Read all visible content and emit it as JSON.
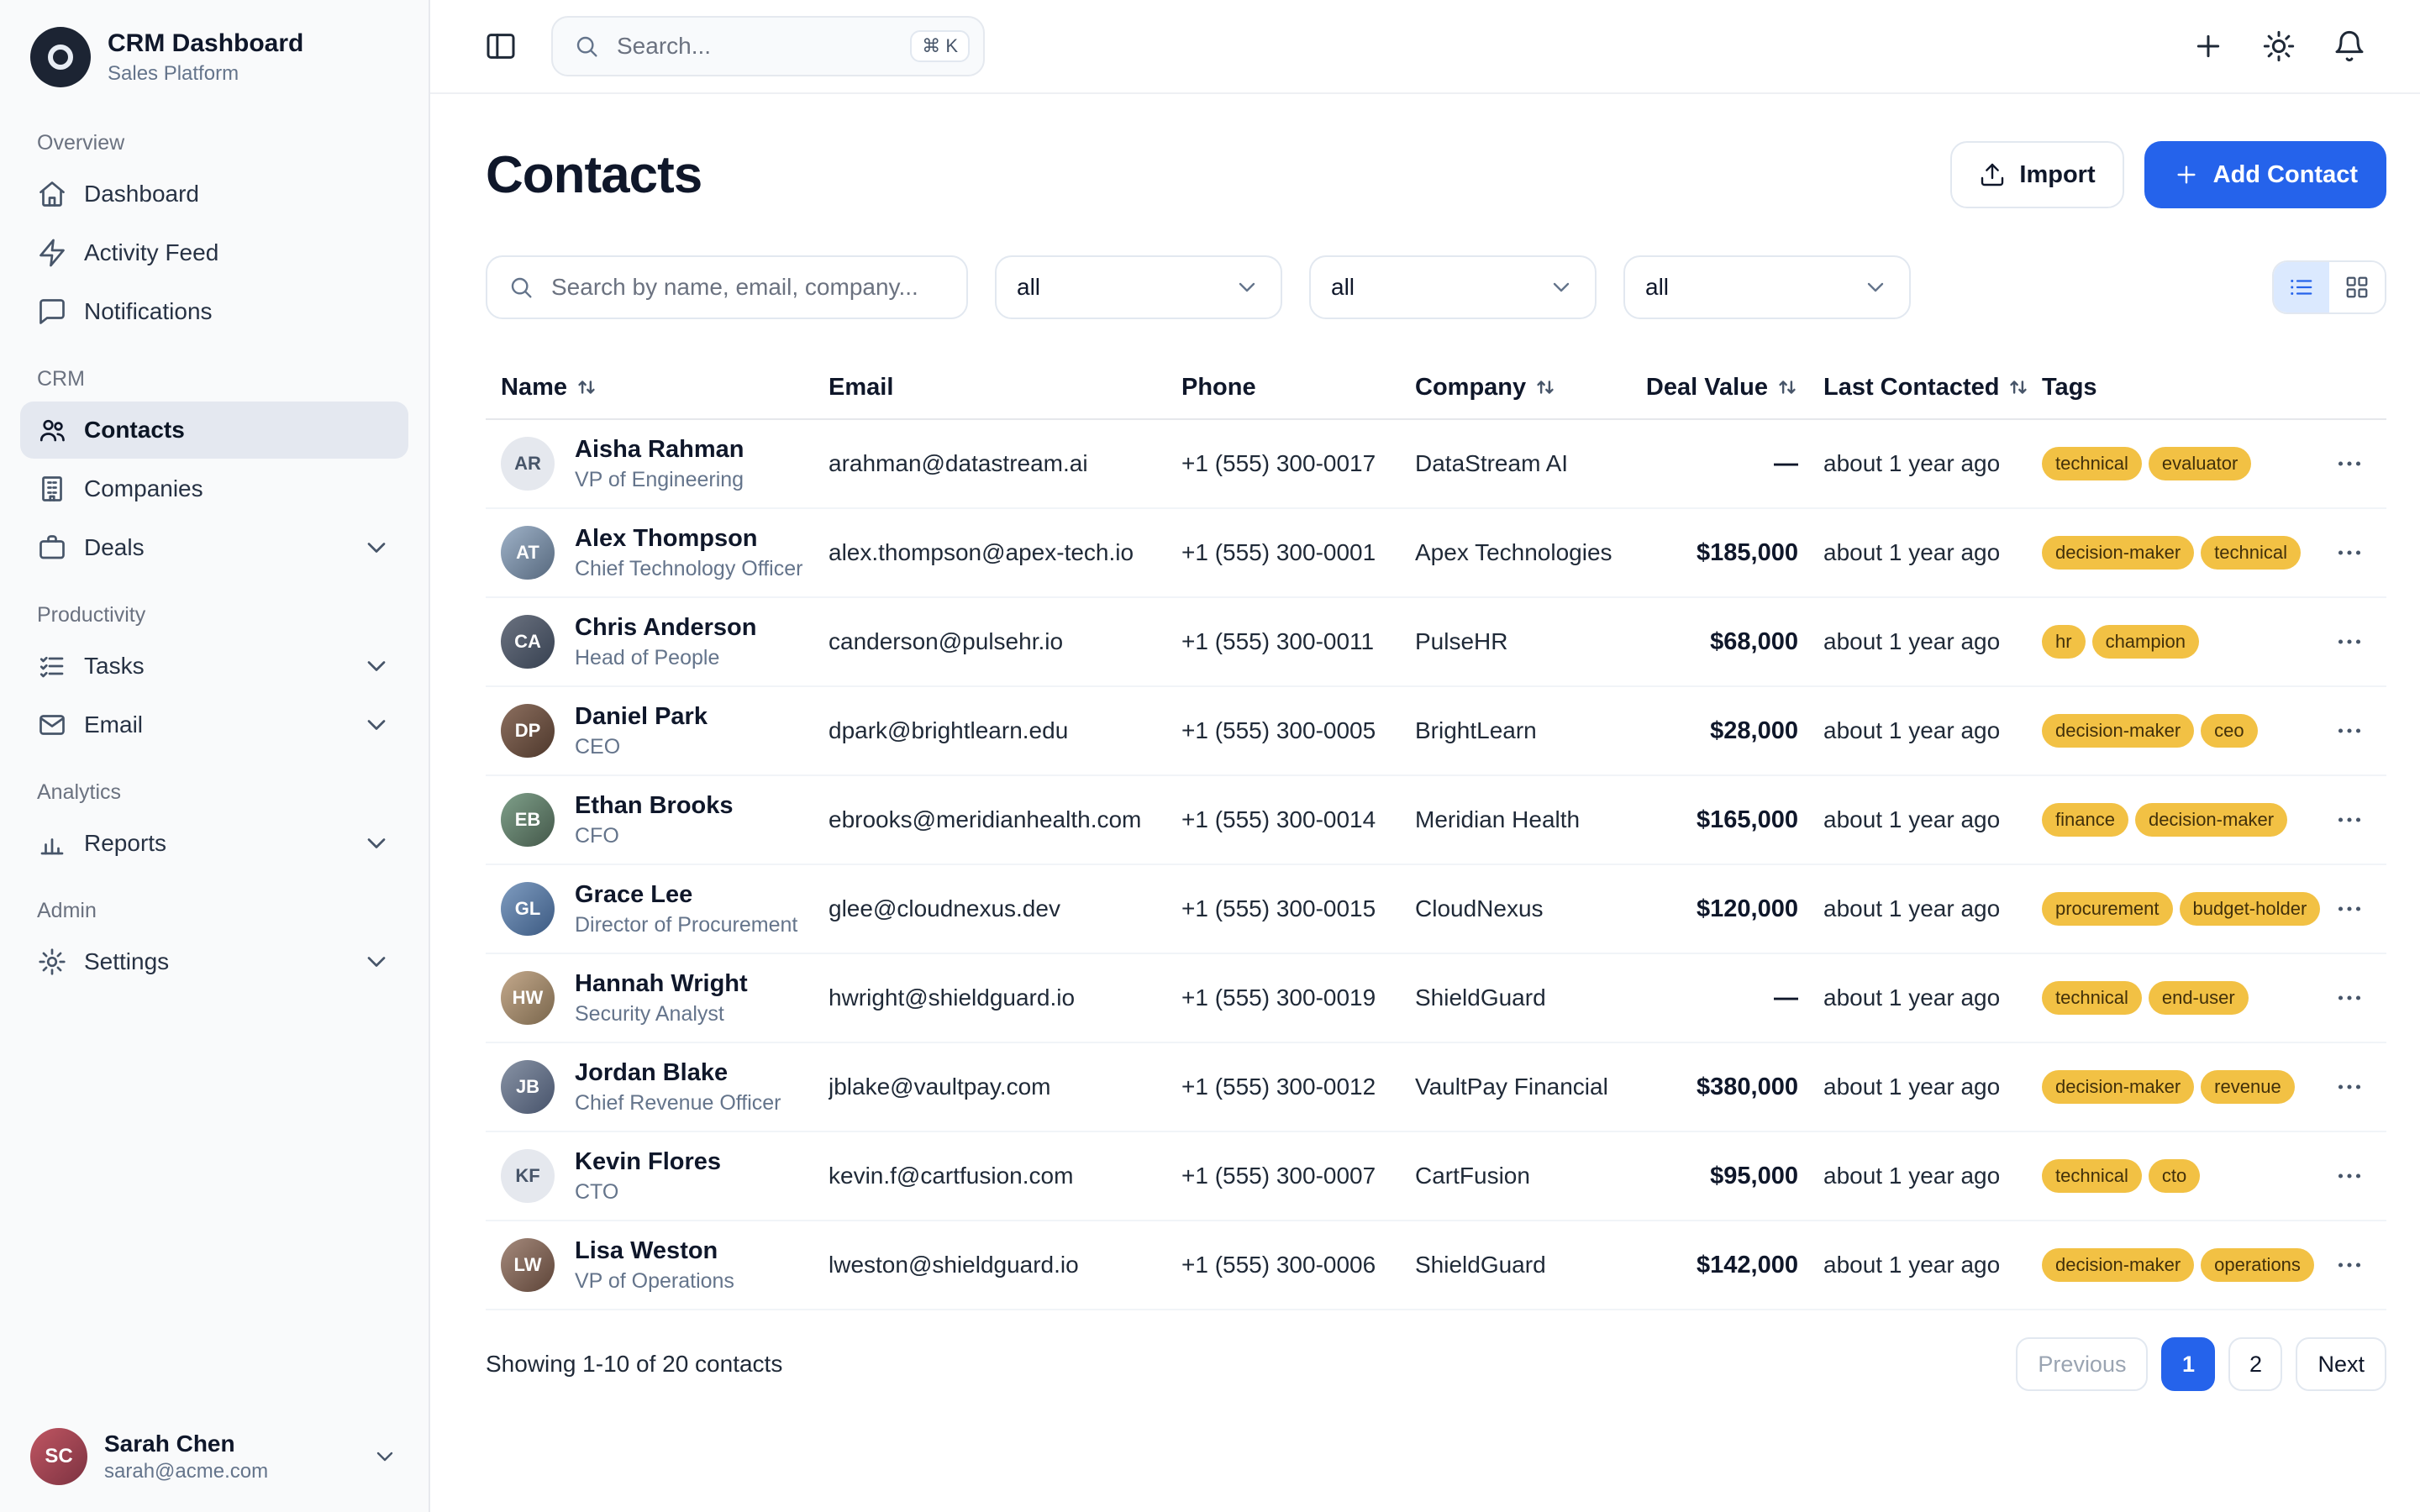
{
  "colors": {
    "accent": "#2563eb",
    "tag_bg": "#f2c144",
    "tag_text": "#42300a",
    "toggle_active_bg": "#dbe9fe"
  },
  "app": {
    "title": "CRM Dashboard",
    "subtitle": "Sales Platform",
    "logo_icon": "target"
  },
  "topbar": {
    "panel_toggle_icon": "panel-left",
    "search_placeholder": "Search...",
    "shortcut": "⌘ K",
    "actions": [
      {
        "icon": "plus"
      },
      {
        "icon": "sun"
      },
      {
        "icon": "bell"
      }
    ]
  },
  "sidebar": {
    "sections": [
      {
        "label": "Overview",
        "items": [
          {
            "label": "Dashboard",
            "icon": "home"
          },
          {
            "label": "Activity Feed",
            "icon": "zap"
          },
          {
            "label": "Notifications",
            "icon": "message-square"
          }
        ]
      },
      {
        "label": "CRM",
        "items": [
          {
            "label": "Contacts",
            "icon": "users",
            "active": true
          },
          {
            "label": "Companies",
            "icon": "building"
          },
          {
            "label": "Deals",
            "icon": "briefcase",
            "chevron": true
          }
        ]
      },
      {
        "label": "Productivity",
        "items": [
          {
            "label": "Tasks",
            "icon": "check-list",
            "chevron": true
          },
          {
            "label": "Email",
            "icon": "mail",
            "chevron": true
          }
        ]
      },
      {
        "label": "Analytics",
        "items": [
          {
            "label": "Reports",
            "icon": "bar-chart",
            "chevron": true
          }
        ]
      },
      {
        "label": "Admin",
        "items": [
          {
            "label": "Settings",
            "icon": "gear",
            "chevron": true
          }
        ]
      }
    ],
    "user": {
      "name": "Sarah Chen",
      "email": "sarah@acme.com",
      "initials": "SC"
    }
  },
  "page": {
    "title": "Contacts",
    "import_label": "Import",
    "add_contact_label": "Add Contact",
    "filter_placeholder": "Search by name, email, company...",
    "filters": [
      "all",
      "all",
      "all"
    ],
    "view_toggle": [
      {
        "icon": "list",
        "active": true
      },
      {
        "icon": "grid",
        "active": false
      }
    ],
    "columns": [
      {
        "label": "Name",
        "sortable": true
      },
      {
        "label": "Email",
        "sortable": false
      },
      {
        "label": "Phone",
        "sortable": false
      },
      {
        "label": "Company",
        "sortable": true
      },
      {
        "label": "Deal Value",
        "sortable": true,
        "align": "right"
      },
      {
        "label": "Last Contacted",
        "sortable": true
      },
      {
        "label": "Tags",
        "sortable": false
      },
      {
        "label": "",
        "sortable": false
      }
    ],
    "contacts": [
      {
        "name": "Aisha Rahman",
        "title": "VP of Engineering",
        "initials": "AR",
        "avatar_type": "initials",
        "email": "arahman@datastream.ai",
        "phone": "+1 (555) 300-0017",
        "company": "DataStream AI",
        "deal_value": "—",
        "last_contacted": "about 1 year ago",
        "tags": [
          "technical",
          "evaluator"
        ]
      },
      {
        "name": "Alex Thompson",
        "title": "Chief Technology Officer",
        "initials": "AT",
        "avatar_type": "photo",
        "email": "alex.thompson@apex-tech.io",
        "phone": "+1 (555) 300-0001",
        "company": "Apex Technologies",
        "deal_value": "$185,000",
        "last_contacted": "about 1 year ago",
        "tags": [
          "decision-maker",
          "technical"
        ]
      },
      {
        "name": "Chris Anderson",
        "title": "Head of People",
        "initials": "CA",
        "avatar_type": "photo",
        "email": "canderson@pulsehr.io",
        "phone": "+1 (555) 300-0011",
        "company": "PulseHR",
        "deal_value": "$68,000",
        "last_contacted": "about 1 year ago",
        "tags": [
          "hr",
          "champion"
        ]
      },
      {
        "name": "Daniel Park",
        "title": "CEO",
        "initials": "DP",
        "avatar_type": "photo",
        "email": "dpark@brightlearn.edu",
        "phone": "+1 (555) 300-0005",
        "company": "BrightLearn",
        "deal_value": "$28,000",
        "last_contacted": "about 1 year ago",
        "tags": [
          "decision-maker",
          "ceo"
        ]
      },
      {
        "name": "Ethan Brooks",
        "title": "CFO",
        "initials": "EB",
        "avatar_type": "photo",
        "email": "ebrooks@meridianhealth.com",
        "phone": "+1 (555) 300-0014",
        "company": "Meridian Health",
        "deal_value": "$165,000",
        "last_contacted": "about 1 year ago",
        "tags": [
          "finance",
          "decision-maker"
        ]
      },
      {
        "name": "Grace Lee",
        "title": "Director of Procurement",
        "initials": "GL",
        "avatar_type": "photo",
        "email": "glee@cloudnexus.dev",
        "phone": "+1 (555) 300-0015",
        "company": "CloudNexus",
        "deal_value": "$120,000",
        "last_contacted": "about 1 year ago",
        "tags": [
          "procurement",
          "budget-holder"
        ]
      },
      {
        "name": "Hannah Wright",
        "title": "Security Analyst",
        "initials": "HW",
        "avatar_type": "photo",
        "email": "hwright@shieldguard.io",
        "phone": "+1 (555) 300-0019",
        "company": "ShieldGuard",
        "deal_value": "—",
        "last_contacted": "about 1 year ago",
        "tags": [
          "technical",
          "end-user"
        ]
      },
      {
        "name": "Jordan Blake",
        "title": "Chief Revenue Officer",
        "initials": "JB",
        "avatar_type": "photo",
        "email": "jblake@vaultpay.com",
        "phone": "+1 (555) 300-0012",
        "company": "VaultPay Financial",
        "deal_value": "$380,000",
        "last_contacted": "about 1 year ago",
        "tags": [
          "decision-maker",
          "revenue"
        ]
      },
      {
        "name": "Kevin Flores",
        "title": "CTO",
        "initials": "KF",
        "avatar_type": "initials",
        "email": "kevin.f@cartfusion.com",
        "phone": "+1 (555) 300-0007",
        "company": "CartFusion",
        "deal_value": "$95,000",
        "last_contacted": "about 1 year ago",
        "tags": [
          "technical",
          "cto"
        ]
      },
      {
        "name": "Lisa Weston",
        "title": "VP of Operations",
        "initials": "LW",
        "avatar_type": "photo",
        "email": "lweston@shieldguard.io",
        "phone": "+1 (555) 300-0006",
        "company": "ShieldGuard",
        "deal_value": "$142,000",
        "last_contacted": "about 1 year ago",
        "tags": [
          "decision-maker",
          "operations"
        ]
      }
    ],
    "footer_text": "Showing 1-10 of 20 contacts",
    "pagination": {
      "prev": "Previous",
      "pages": [
        "1",
        "2"
      ],
      "active_page": "1",
      "next": "Next"
    }
  }
}
